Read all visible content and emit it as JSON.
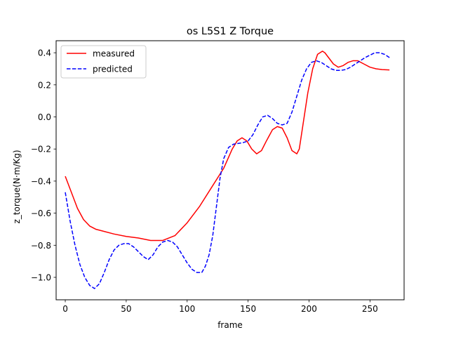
{
  "chart_data": {
    "type": "line",
    "title": "os L5S1 Z Torque",
    "xlabel": "frame",
    "ylabel": "z_torque(N·m/Kg)",
    "xlim": [
      -7.5,
      278
    ],
    "ylim": [
      -1.14,
      0.475
    ],
    "xticks": [
      0,
      50,
      100,
      150,
      200,
      250
    ],
    "yticks": [
      -1.0,
      -0.8,
      -0.6,
      -0.4,
      -0.2,
      0.0,
      0.2,
      0.4
    ],
    "ytick_labels": [
      "−1.0",
      "−0.8",
      "−0.6",
      "−0.4",
      "−0.2",
      "0.0",
      "0.2",
      "0.4"
    ],
    "grid": false,
    "legend_position": "top-left",
    "series": [
      {
        "name": "measured",
        "color": "#ff0000",
        "dash": "solid",
        "x": [
          0,
          5,
          10,
          15,
          20,
          25,
          30,
          40,
          50,
          60,
          70,
          80,
          90,
          100,
          110,
          120,
          130,
          137,
          141,
          145,
          149,
          153,
          157,
          161,
          165,
          170,
          174,
          178,
          182,
          186,
          190,
          192,
          195,
          199,
          203,
          207,
          211,
          213,
          216,
          220,
          224,
          228,
          232,
          236,
          240,
          245,
          250,
          255,
          260,
          266
        ],
        "y": [
          -0.37,
          -0.47,
          -0.57,
          -0.64,
          -0.68,
          -0.7,
          -0.71,
          -0.73,
          -0.745,
          -0.755,
          -0.77,
          -0.77,
          -0.74,
          -0.66,
          -0.56,
          -0.44,
          -0.32,
          -0.2,
          -0.15,
          -0.13,
          -0.15,
          -0.2,
          -0.23,
          -0.21,
          -0.15,
          -0.08,
          -0.06,
          -0.07,
          -0.13,
          -0.21,
          -0.23,
          -0.2,
          -0.05,
          0.15,
          0.3,
          0.39,
          0.41,
          0.4,
          0.37,
          0.33,
          0.31,
          0.32,
          0.34,
          0.35,
          0.35,
          0.33,
          0.31,
          0.3,
          0.295,
          0.293
        ]
      },
      {
        "name": "predicted",
        "color": "#0000ff",
        "dash": "dashed",
        "x": [
          0,
          4,
          8,
          12,
          16,
          20,
          24,
          28,
          32,
          36,
          40,
          44,
          48,
          52,
          56,
          60,
          64,
          68,
          72,
          76,
          80,
          84,
          88,
          92,
          96,
          100,
          104,
          108,
          112,
          115,
          118,
          121,
          124,
          127,
          130,
          134,
          138,
          142,
          146,
          150,
          154,
          158,
          162,
          166,
          170,
          174,
          178,
          182,
          186,
          190,
          194,
          198,
          202,
          206,
          210,
          214,
          218,
          222,
          226,
          230,
          234,
          238,
          242,
          246,
          250,
          254,
          258,
          262,
          266
        ],
        "y": [
          -0.47,
          -0.65,
          -0.8,
          -0.92,
          -1.0,
          -1.05,
          -1.07,
          -1.04,
          -0.97,
          -0.89,
          -0.83,
          -0.8,
          -0.79,
          -0.79,
          -0.81,
          -0.84,
          -0.87,
          -0.89,
          -0.86,
          -0.81,
          -0.78,
          -0.77,
          -0.78,
          -0.81,
          -0.86,
          -0.91,
          -0.95,
          -0.97,
          -0.97,
          -0.93,
          -0.86,
          -0.74,
          -0.56,
          -0.38,
          -0.26,
          -0.19,
          -0.17,
          -0.165,
          -0.16,
          -0.15,
          -0.11,
          -0.05,
          0.0,
          0.01,
          -0.01,
          -0.04,
          -0.05,
          -0.04,
          0.03,
          0.13,
          0.23,
          0.3,
          0.34,
          0.35,
          0.34,
          0.32,
          0.3,
          0.29,
          0.29,
          0.295,
          0.31,
          0.33,
          0.35,
          0.37,
          0.385,
          0.4,
          0.4,
          0.39,
          0.37
        ]
      }
    ]
  }
}
